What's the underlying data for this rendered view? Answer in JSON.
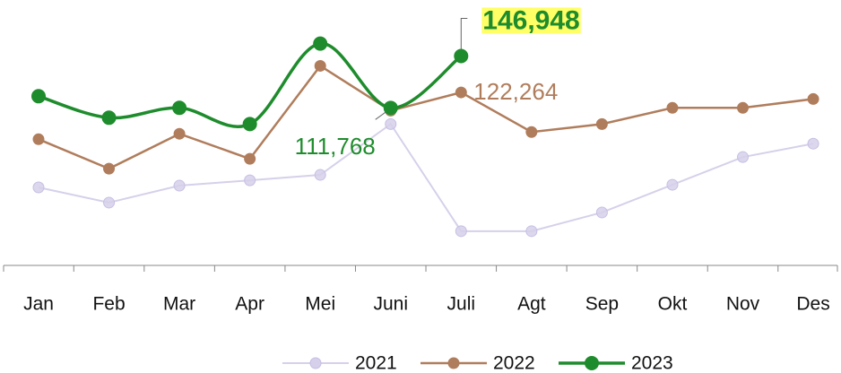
{
  "chart_data": {
    "type": "line",
    "categories": [
      "Jan",
      "Feb",
      "Mar",
      "Apr",
      "Mei",
      "Juni",
      "Juli",
      "Agt",
      "Sep",
      "Okt",
      "Nov",
      "Des"
    ],
    "ylim": [
      0,
      185000
    ],
    "series": [
      {
        "name": "2021",
        "color": "#d6d0ea",
        "values": [
          57800,
          47500,
          59000,
          62600,
          66300,
          100800,
          28100,
          28100,
          40800,
          59600,
          78400,
          87500
        ]
      },
      {
        "name": "2022",
        "color": "#b07d5c",
        "values": [
          90500,
          70500,
          94200,
          77200,
          140300,
          109900,
          122264,
          95400,
          100800,
          111800,
          111800,
          117800
        ],
        "value_labels": [
          null,
          null,
          null,
          null,
          null,
          null,
          "122,264",
          null,
          null,
          null,
          null,
          null
        ]
      },
      {
        "name": "2023",
        "color": "#1e8c2c",
        "smooth": true,
        "values": [
          119700,
          105100,
          111800,
          100800,
          155400,
          111768,
          146948,
          null,
          null,
          null,
          null,
          null
        ],
        "value_labels": [
          null,
          null,
          null,
          null,
          null,
          "111,768",
          "146,948",
          null,
          null,
          null,
          null,
          null
        ]
      }
    ],
    "legend": "bottom"
  }
}
